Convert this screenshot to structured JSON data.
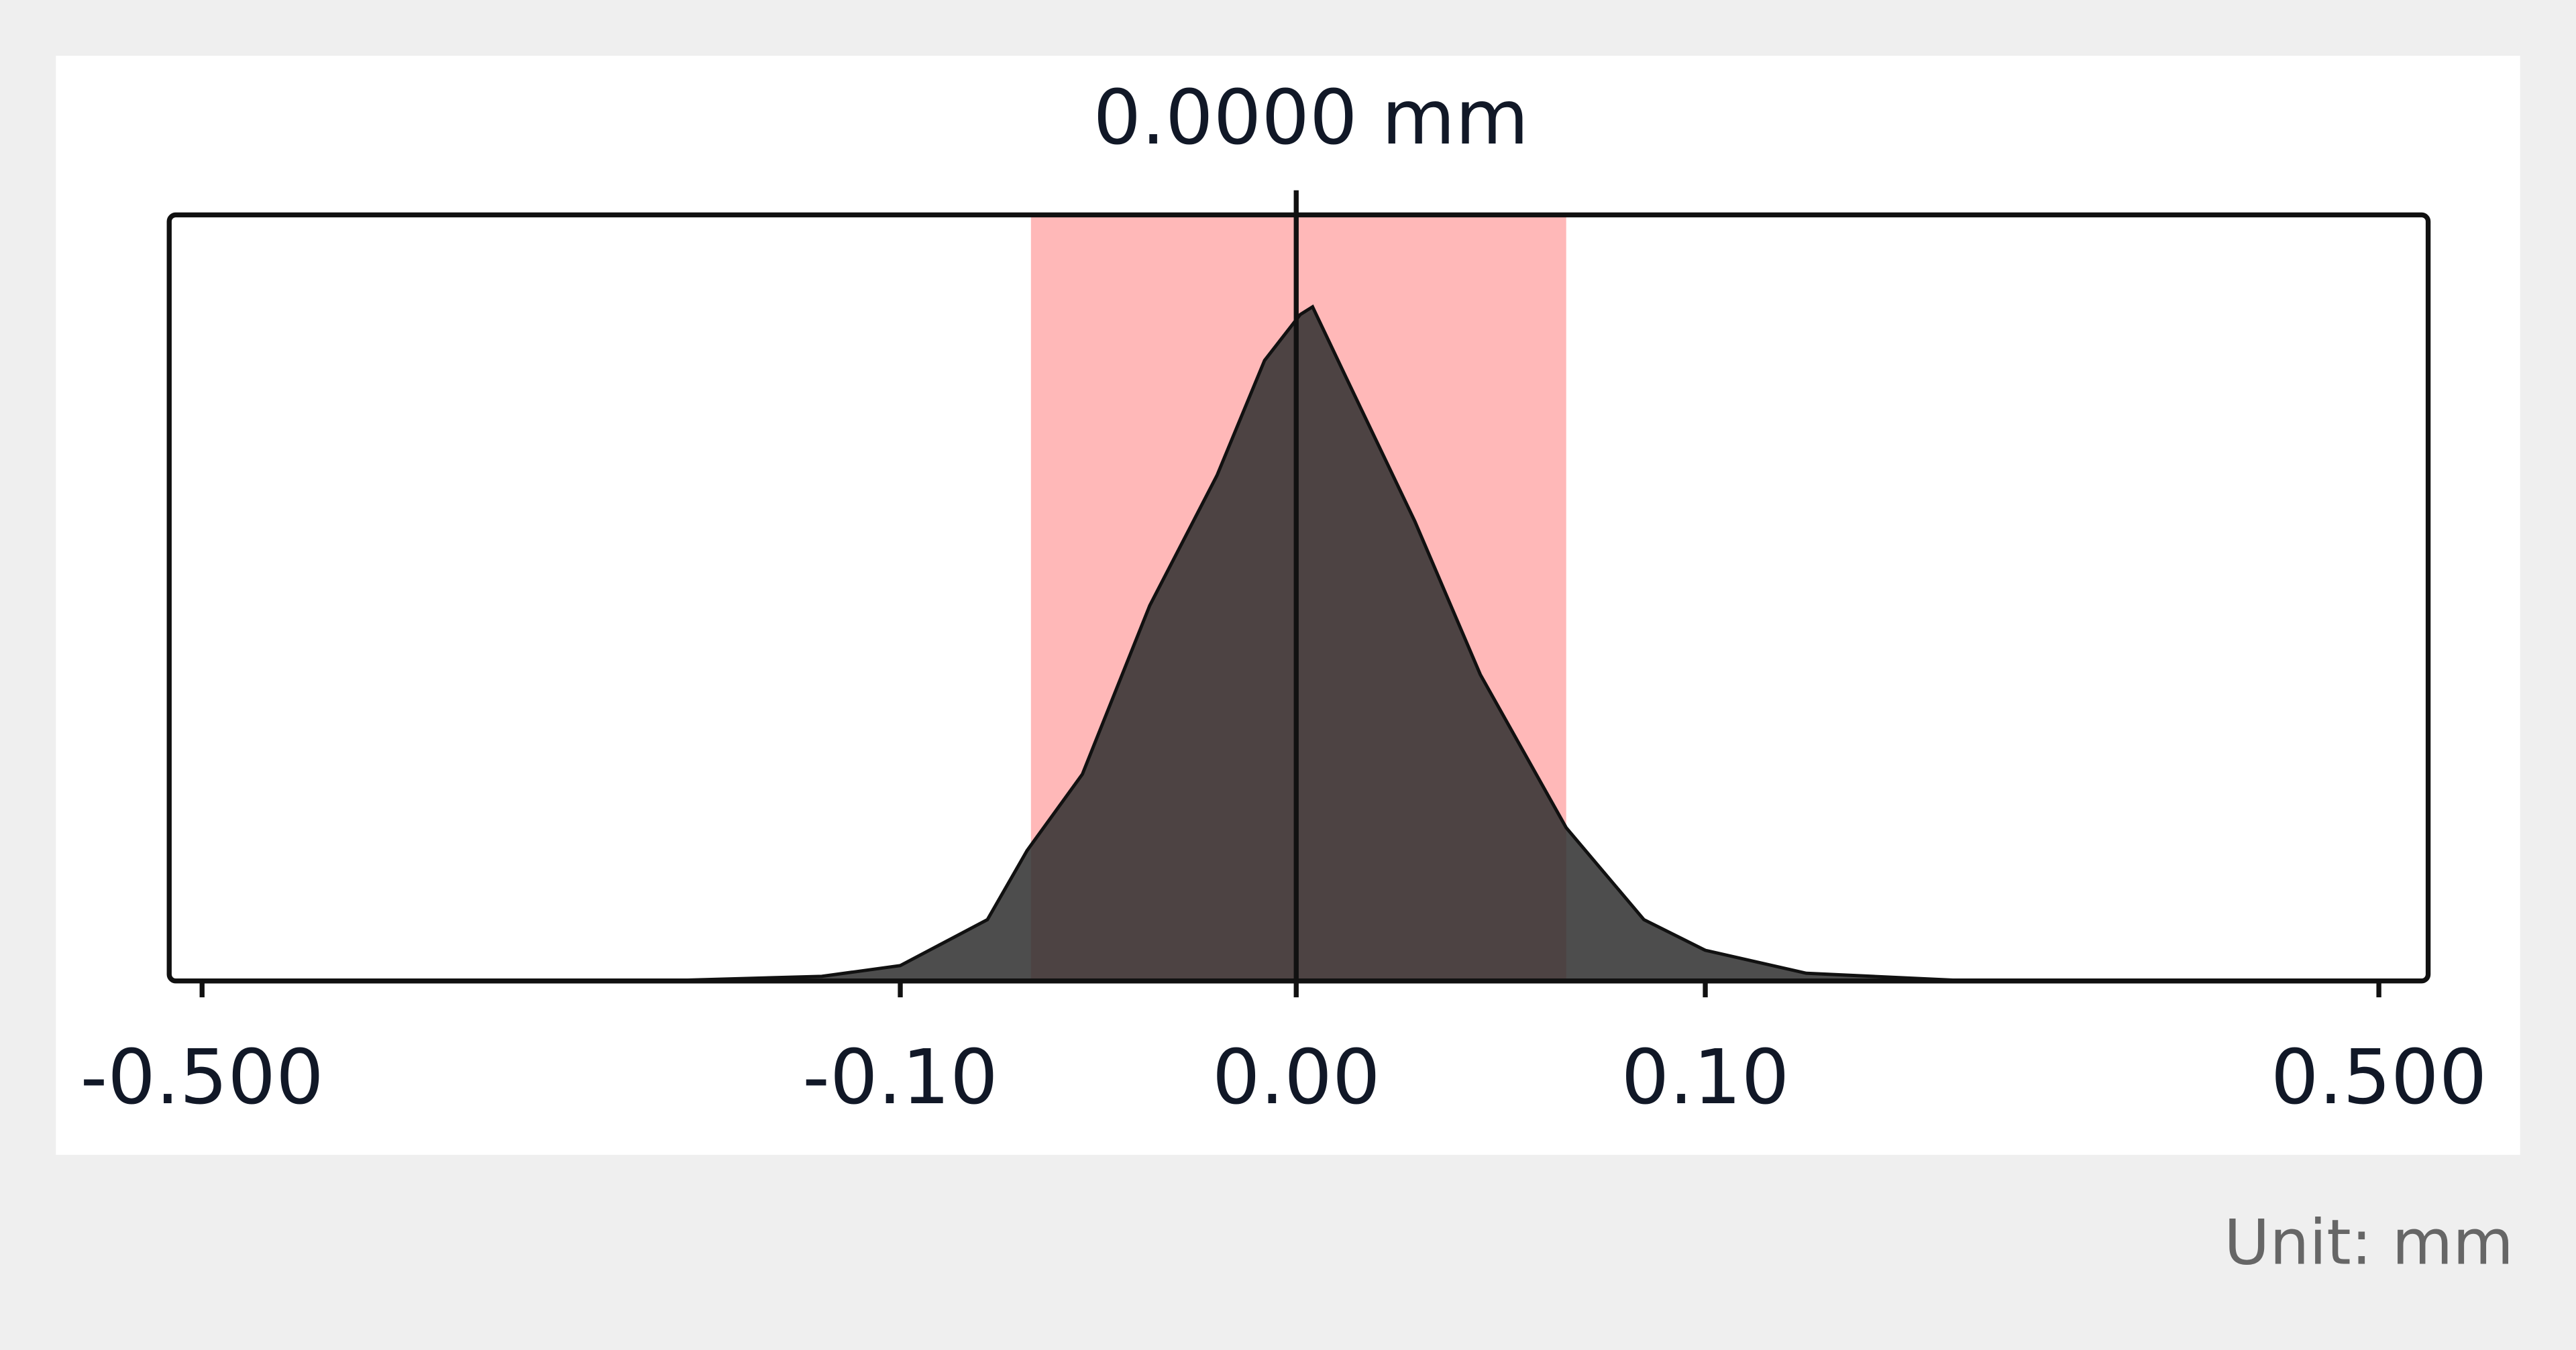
{
  "chart_data": {
    "type": "area",
    "title": {
      "value": 0,
      "label": "0.0000 mm"
    },
    "note": "Unit: mm",
    "x": [
      -0.5,
      -0.239,
      -0.145,
      -0.1,
      -0.078,
      -0.068,
      -0.054,
      -0.037,
      -0.02,
      -0.008,
      0.001,
      0.004,
      0.012,
      0.029,
      0.045,
      0.066,
      0.085,
      0.1,
      0.16,
      0.258,
      0.5
    ],
    "values": [
      0,
      0,
      0.6,
      2,
      8,
      17,
      27,
      49,
      66,
      81,
      87,
      88,
      79,
      60,
      40,
      20,
      8,
      4,
      1,
      0,
      0
    ],
    "color": "#2e2e2e",
    "band": [
      -0.067,
      0.066
    ],
    "band_color": "#ffb8b8",
    "xlim": [
      -0.5,
      0.5
    ],
    "ylim": [
      0,
      100
    ],
    "xticks": [
      {
        "value": -0.5,
        "label": "-0.500"
      },
      {
        "value": -0.1,
        "label": "-0.10"
      },
      {
        "value": 0,
        "label": "0.00"
      },
      {
        "value": 0.1,
        "label": "0.10"
      },
      {
        "value": 0.5,
        "label": "0.500"
      }
    ]
  }
}
